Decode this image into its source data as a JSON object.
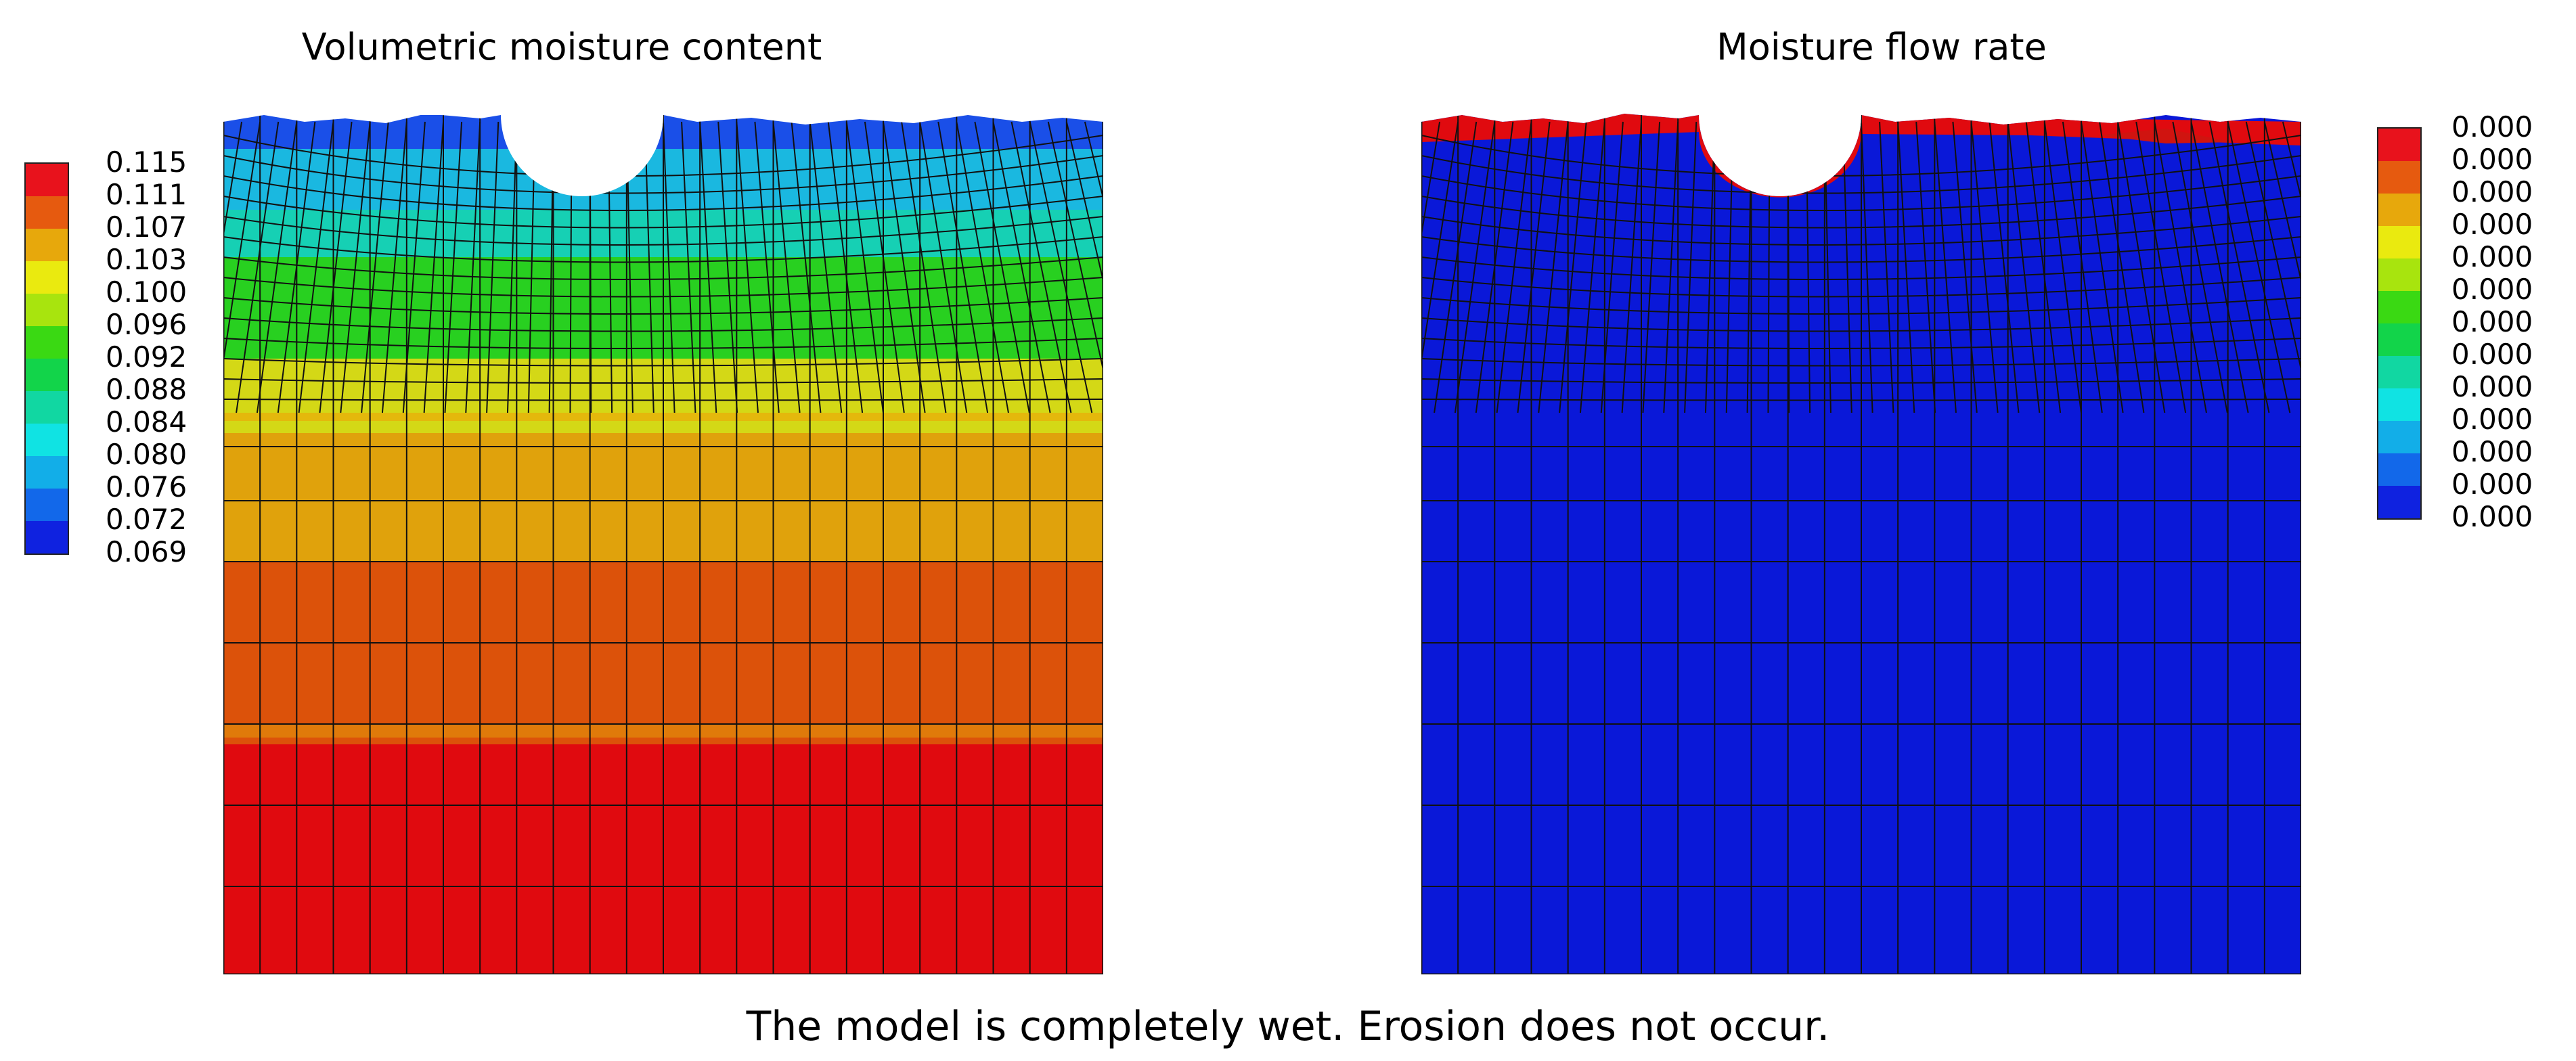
{
  "panels": [
    {
      "title": "Volumetric moisture content",
      "legend": {
        "labels": [
          "0.115",
          "0.111",
          "0.107",
          "0.103",
          "0.100",
          "0.096",
          "0.092",
          "0.088",
          "0.084",
          "0.080",
          "0.076",
          "0.072",
          "0.069"
        ],
        "colors": [
          "#e8121c",
          "#e65a0f",
          "#e7a80c",
          "#eaea0f",
          "#a8e40e",
          "#3ad913",
          "#12d44a",
          "#11d7a2",
          "#10e3e3",
          "#12aee8",
          "#1268ea",
          "#0f22e0"
        ]
      }
    },
    {
      "title": "Moisture flow rate",
      "legend": {
        "labels": [
          "0.000",
          "0.000",
          "0.000",
          "0.000",
          "0.000",
          "0.000",
          "0.000",
          "0.000",
          "0.000",
          "0.000",
          "0.000",
          "0.000",
          "0.000"
        ],
        "colors": [
          "#e8121c",
          "#e65a0f",
          "#e7a80c",
          "#eaea0f",
          "#a8e40e",
          "#3ad913",
          "#12d44a",
          "#11d7a2",
          "#10e3e3",
          "#12aee8",
          "#1268ea",
          "#0f22e0"
        ]
      }
    }
  ],
  "caption": "The model is completely wet. Erosion does not occur.",
  "colors": {
    "red": "#e00a0f",
    "orange": "#dc530a",
    "gold": "#e0a00a",
    "yellow": "#d8dc12",
    "green": "#2fd115",
    "teal": "#1bcfb8",
    "cyan": "#12b4e6",
    "blue": "#1236e0",
    "deep-blue": "#0a18d8",
    "mesh": "#111111"
  }
}
